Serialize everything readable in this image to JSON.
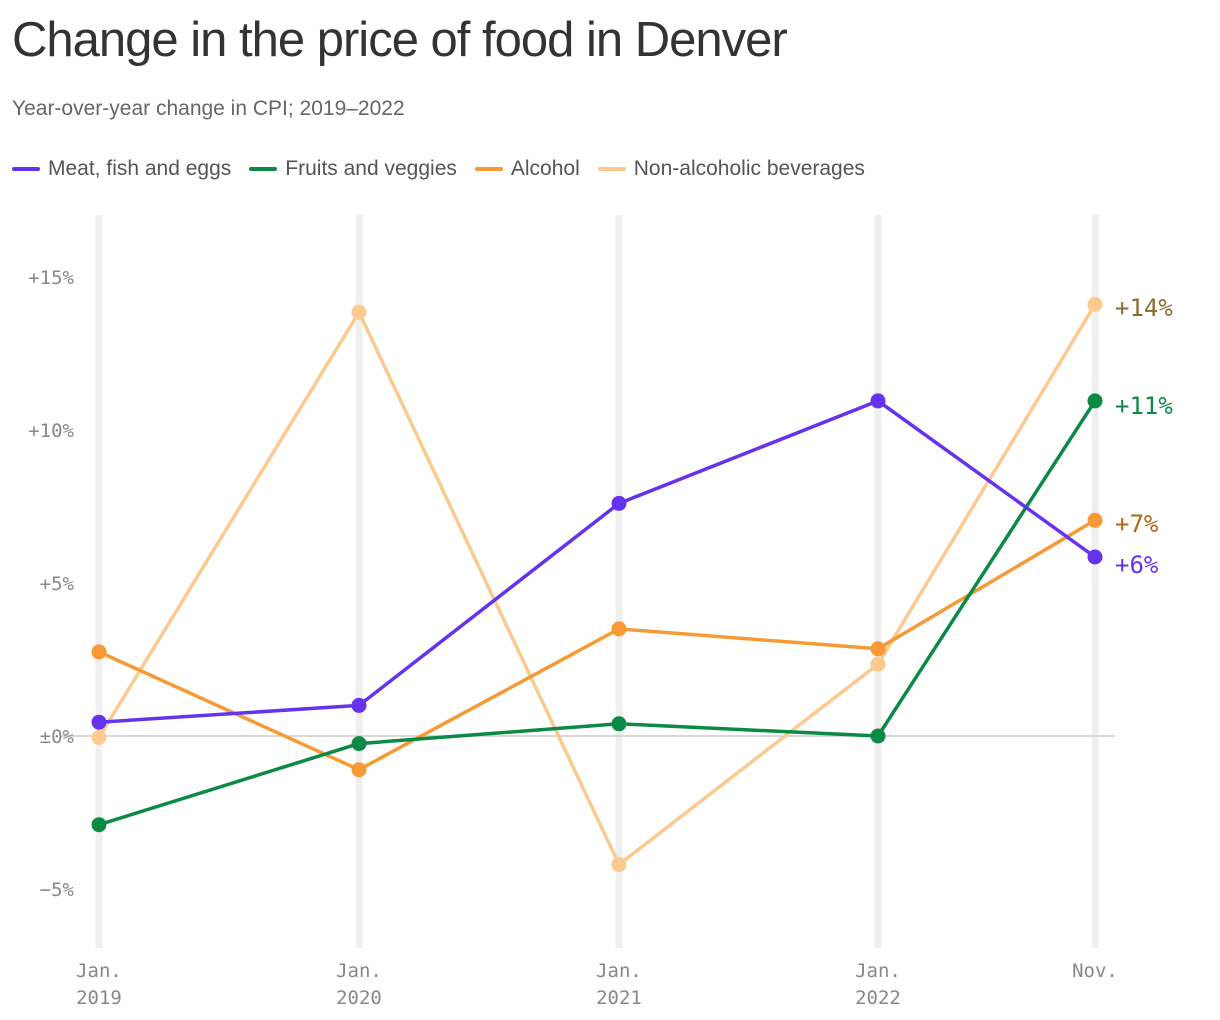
{
  "chart_data": {
    "type": "line",
    "title": "Change in the price of food in Denver",
    "subtitle": "Year-over-year change in CPI; 2019–2022",
    "x": [
      {
        "line1": "Jan.",
        "line2": "2019"
      },
      {
        "line1": "Jan.",
        "line2": "2020"
      },
      {
        "line1": "Jan.",
        "line2": "2021"
      },
      {
        "line1": "Jan.",
        "line2": "2022"
      },
      {
        "line1": "Nov.",
        "line2": ""
      }
    ],
    "ylim": [
      -7,
      17
    ],
    "yticks": [
      15,
      10,
      5,
      0,
      -5
    ],
    "ytick_labels": [
      "+15%",
      "+10%",
      "+5%",
      "±0%",
      "−5%"
    ],
    "grid": true,
    "legend_position": "top-left",
    "series": [
      {
        "name": "Meat, fish and eggs",
        "color": "#6533ee",
        "label_color": "#6533ee",
        "values": [
          0.45,
          1.0,
          7.6,
          10.95,
          5.85
        ],
        "end_label": "+6%"
      },
      {
        "name": "Fruits and veggies",
        "color": "#0a8a44",
        "label_color": "#0a8a44",
        "values": [
          -2.9,
          -0.25,
          0.4,
          0.0,
          10.95
        ],
        "end_label": "+11%"
      },
      {
        "name": "Alcohol",
        "color": "#f79a35",
        "label_color": "#b36412",
        "values": [
          2.75,
          -1.1,
          3.5,
          2.85,
          7.05
        ],
        "end_label": "+7%"
      },
      {
        "name": "Non-alcoholic beverages",
        "color": "#fcc98f",
        "label_color": "#8a6a2e",
        "values": [
          -0.05,
          13.85,
          -4.2,
          2.35,
          14.1
        ],
        "end_label": "+14%"
      }
    ]
  }
}
